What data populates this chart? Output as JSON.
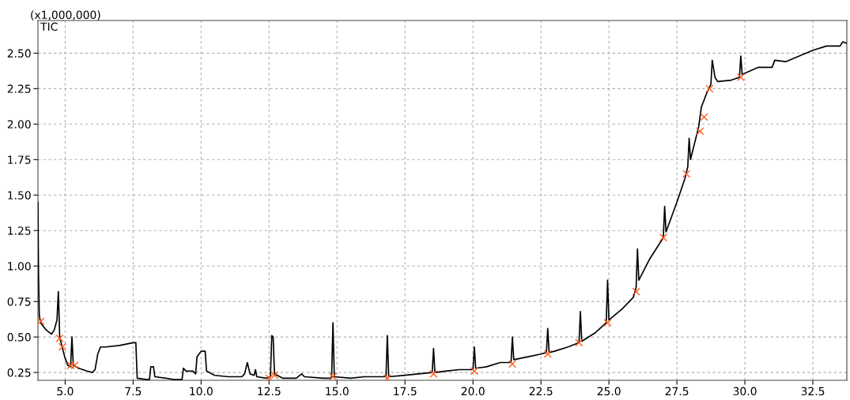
{
  "chart_data": {
    "type": "line",
    "annotations": [
      "(x1,000,000)",
      "TIC"
    ],
    "xlim": [
      4.0,
      33.75
    ],
    "ylim": [
      0.195,
      2.73
    ],
    "xticks": [
      {
        "value": 5,
        "label": "5.0"
      },
      {
        "value": 7.5,
        "label": "7.5"
      },
      {
        "value": 10,
        "label": "10.0"
      },
      {
        "value": 12.5,
        "label": "12.5"
      },
      {
        "value": 15,
        "label": "15.0"
      },
      {
        "value": 17.5,
        "label": "17.5"
      },
      {
        "value": 20,
        "label": "20.0"
      },
      {
        "value": 22.5,
        "label": "22.5"
      },
      {
        "value": 25,
        "label": "25.0"
      },
      {
        "value": 27.5,
        "label": "27.5"
      },
      {
        "value": 30,
        "label": "30.0"
      },
      {
        "value": 32.5,
        "label": "32.5"
      }
    ],
    "yticks": [
      0.25,
      {
        "value": 0.5,
        "label": "0.50"
      },
      0.75,
      {
        "value": 1,
        "label": "1.00"
      },
      1.25,
      {
        "value": 1.5,
        "label": "1.50"
      },
      1.75,
      {
        "value": 2,
        "label": "2.00"
      },
      2.25,
      {
        "value": 2.5,
        "label": "2.50"
      }
    ],
    "grid": true,
    "series": [
      {
        "color": "#000000",
        "marker": "none",
        "line_style": "solid",
        "x": [
          4.0,
          4.02,
          4.05,
          4.1,
          4.3,
          4.5,
          4.6,
          4.7,
          4.75,
          4.8,
          4.9,
          5.0,
          5.1,
          5.2,
          5.25,
          5.3,
          5.5,
          5.8,
          6.0,
          6.1,
          6.2,
          6.3,
          6.5,
          7.0,
          7.5,
          7.6,
          7.65,
          8.0,
          8.1,
          8.15,
          8.25,
          8.3,
          8.7,
          9.0,
          9.3,
          9.35,
          9.45,
          9.7,
          9.8,
          9.85,
          10.0,
          10.15,
          10.2,
          10.5,
          11.0,
          11.5,
          11.6,
          11.7,
          11.8,
          11.95,
          12.0,
          12.05,
          12.4,
          12.55,
          12.6,
          12.65,
          12.7,
          13.0,
          13.5,
          13.7,
          13.8,
          14.5,
          14.8,
          14.85,
          14.9,
          15.5,
          16.0,
          16.5,
          16.8,
          16.85,
          16.9,
          17.5,
          18.0,
          18.5,
          18.55,
          18.6,
          19.0,
          19.5,
          20.0,
          20.05,
          20.1,
          20.5,
          21.0,
          21.4,
          21.45,
          21.5,
          22.0,
          22.5,
          22.7,
          22.75,
          22.8,
          23.0,
          23.5,
          23.9,
          23.95,
          24.0,
          24.5,
          24.9,
          24.95,
          25.0,
          25.5,
          25.9,
          26.0,
          26.05,
          26.1,
          26.5,
          27.0,
          27.05,
          27.1,
          27.5,
          27.8,
          27.9,
          27.95,
          28.0,
          28.3,
          28.4,
          28.6,
          28.75,
          28.8,
          28.9,
          29.0,
          29.5,
          29.8,
          29.85,
          29.9,
          30.5,
          31.0,
          31.1,
          31.5,
          32.0,
          32.5,
          33.0,
          33.5,
          33.6,
          33.75
        ],
        "values": [
          1.45,
          0.95,
          0.65,
          0.6,
          0.55,
          0.52,
          0.55,
          0.62,
          0.82,
          0.5,
          0.42,
          0.35,
          0.3,
          0.29,
          0.5,
          0.3,
          0.28,
          0.26,
          0.25,
          0.27,
          0.38,
          0.43,
          0.43,
          0.44,
          0.46,
          0.46,
          0.21,
          0.2,
          0.2,
          0.29,
          0.29,
          0.22,
          0.21,
          0.2,
          0.2,
          0.28,
          0.26,
          0.26,
          0.24,
          0.36,
          0.4,
          0.4,
          0.26,
          0.23,
          0.22,
          0.22,
          0.24,
          0.32,
          0.24,
          0.23,
          0.27,
          0.22,
          0.21,
          0.22,
          0.51,
          0.5,
          0.24,
          0.21,
          0.21,
          0.24,
          0.22,
          0.21,
          0.21,
          0.6,
          0.22,
          0.21,
          0.22,
          0.22,
          0.22,
          0.51,
          0.22,
          0.23,
          0.24,
          0.25,
          0.42,
          0.25,
          0.26,
          0.27,
          0.27,
          0.43,
          0.28,
          0.29,
          0.32,
          0.32,
          0.5,
          0.34,
          0.36,
          0.38,
          0.39,
          0.56,
          0.39,
          0.4,
          0.43,
          0.46,
          0.68,
          0.47,
          0.53,
          0.6,
          0.9,
          0.62,
          0.7,
          0.78,
          0.85,
          1.12,
          0.9,
          1.05,
          1.2,
          1.42,
          1.24,
          1.45,
          1.62,
          1.7,
          1.9,
          1.75,
          1.98,
          2.12,
          2.22,
          2.28,
          2.45,
          2.33,
          2.3,
          2.31,
          2.33,
          2.48,
          2.35,
          2.4,
          2.4,
          2.45,
          2.44,
          2.48,
          2.52,
          2.55,
          2.55,
          2.58,
          2.57
        ]
      },
      {
        "type": "scatter",
        "color": "#ff5a1e",
        "marker": "cross",
        "x": [
          4.1,
          4.8,
          4.9,
          5.2,
          5.35,
          12.5,
          12.7,
          14.85,
          16.85,
          18.55,
          20.05,
          21.45,
          22.75,
          23.9,
          24.95,
          26.0,
          27.0,
          27.85,
          28.35,
          28.5,
          28.7,
          29.85
        ],
        "values": [
          0.61,
          0.49,
          0.43,
          0.3,
          0.3,
          0.21,
          0.23,
          0.22,
          0.21,
          0.24,
          0.26,
          0.31,
          0.38,
          0.46,
          0.6,
          0.82,
          1.2,
          1.65,
          1.95,
          2.05,
          2.25,
          2.33
        ]
      }
    ]
  }
}
